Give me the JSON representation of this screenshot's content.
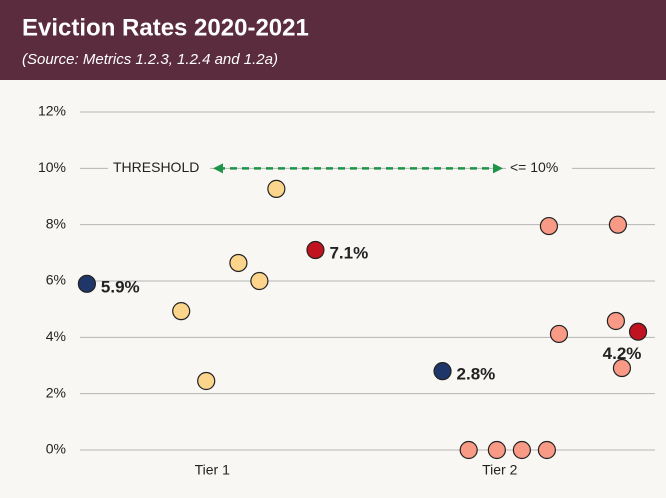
{
  "chart_data": {
    "type": "scatter",
    "title": "Eviction Rates 2020-2021",
    "subtitle": "(Source: Metrics 1.2.3, 1.2.4 and 1.2a)",
    "xlim": [
      0.54,
      2.54
    ],
    "xticks": [
      {
        "value": 1,
        "label": "Tier 1"
      },
      {
        "value": 2,
        "label": "Tier 2"
      }
    ],
    "ylim": [
      0,
      12
    ],
    "yticks": [
      {
        "value": 0,
        "label": "0%"
      },
      {
        "value": 2,
        "label": "2%"
      },
      {
        "value": 4,
        "label": "4%"
      },
      {
        "value": 6,
        "label": "6%"
      },
      {
        "value": 8,
        "label": "8%"
      },
      {
        "value": 10,
        "label": "10%"
      },
      {
        "value": 12,
        "label": "12%"
      }
    ],
    "grid": true,
    "threshold": {
      "value": 10,
      "label_left": "THRESHOLD",
      "label_right": "<= 10%",
      "color": "#1e9448"
    },
    "series": [
      {
        "color": "#fcd58c",
        "x": [
          1.223,
          1.091,
          1.164,
          0.892,
          0.979
        ],
        "values": [
          9.27,
          6.64,
          6.0,
          4.93,
          2.45
        ]
      },
      {
        "color": "#f99a86",
        "x": [
          2.171,
          2.411,
          2.206,
          2.404,
          2.425,
          1.892,
          1.99,
          2.077,
          2.164
        ],
        "values": [
          7.95,
          8.0,
          4.12,
          4.58,
          2.91,
          0,
          0,
          0,
          0
        ]
      },
      {
        "color": "#c1121f",
        "x": [
          1.359,
          2.481
        ],
        "values": [
          7.1,
          4.2
        ],
        "value_labels": [
          "7.1%",
          "4.2%"
        ]
      },
      {
        "color": "#1e3768",
        "x": [
          0.564,
          1.801
        ],
        "values": [
          5.9,
          2.8
        ],
        "value_labels": [
          "5.9%",
          "2.8%"
        ]
      }
    ]
  }
}
